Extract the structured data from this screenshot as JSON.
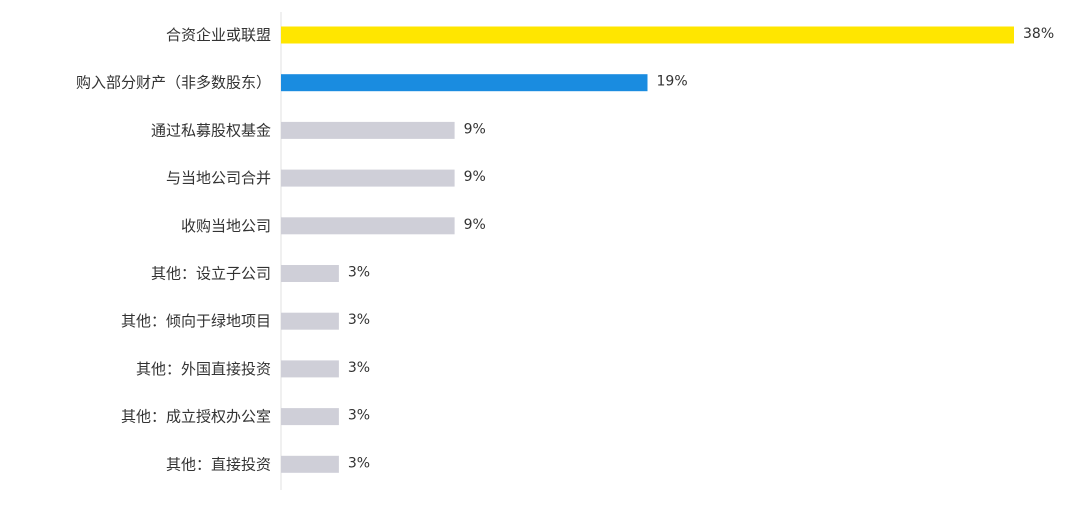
{
  "chart_data": {
    "type": "bar",
    "orientation": "horizontal",
    "categories": [
      "合资企业或联盟",
      "购入部分财产（非多数股东）",
      "通过私募股权基金",
      "与当地公司合并",
      "收购当地公司",
      "其他：设立子公司",
      "其他：倾向于绿地项目",
      "其他：外国直接投资",
      "其他：成立授权办公室",
      "其他：直接投资"
    ],
    "values": [
      38,
      19,
      9,
      9,
      9,
      3,
      3,
      3,
      3,
      3
    ],
    "value_labels": [
      "38%",
      "19%",
      "9%",
      "9%",
      "9%",
      "3%",
      "3%",
      "3%",
      "3%",
      "3%"
    ],
    "bar_colors": [
      "#ffe600",
      "#1a8ce0",
      "#cfcfd8",
      "#cfcfd8",
      "#cfcfd8",
      "#cfcfd8",
      "#cfcfd8",
      "#cfcfd8",
      "#cfcfd8",
      "#cfcfd8"
    ],
    "axis_color": "#e2e2e2",
    "xlim": [
      0,
      38
    ],
    "title": "",
    "xlabel": "",
    "ylabel": "",
    "grid": false,
    "legend": "none"
  }
}
